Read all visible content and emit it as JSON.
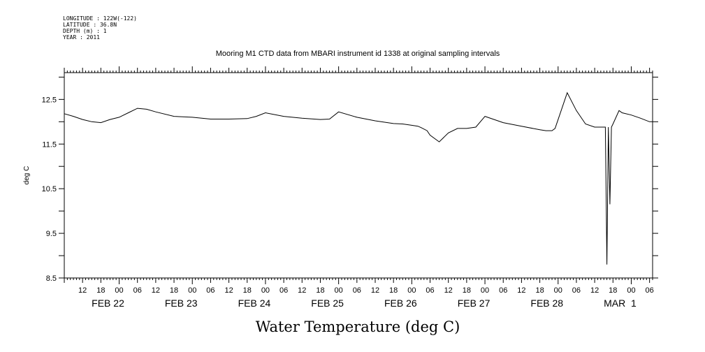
{
  "metadata": {
    "lines": [
      "LONGITUDE : 122W(-122)",
      "LATITUDE : 36.8N",
      "DEPTH (m) : 1",
      "YEAR : 2011"
    ]
  },
  "chart_data": {
    "type": "line",
    "title": "Mooring M1 CTD data from MBARI instrument id 1338 at original sampling intervals",
    "xlabel": "Water Temperature (deg C)",
    "ylabel": "deg C",
    "xlim": [
      "2011-02-21T06:00",
      "2011-03-01T07:00"
    ],
    "ylim": [
      8.5,
      13.1
    ],
    "y_ticks": [
      "8.5",
      "9.5",
      "10.5",
      "11.5",
      "12.5"
    ],
    "hour_tick_labels": [
      "12",
      "18",
      "00",
      "06",
      "12",
      "18",
      "00",
      "06",
      "12",
      "18",
      "00",
      "06",
      "12",
      "18",
      "00",
      "06",
      "12",
      "18",
      "00",
      "06",
      "12",
      "18",
      "00",
      "06",
      "12",
      "18",
      "00",
      "06",
      "12",
      "18",
      "00",
      "06",
      "12",
      "18",
      "00",
      "06"
    ],
    "date_labels": [
      "FEB 22",
      "FEB 23",
      "FEB 24",
      "FEB 25",
      "FEB 26",
      "FEB 27",
      "FEB 28",
      "MAR  1"
    ],
    "grid": false,
    "series": [
      {
        "color": "#000000",
        "x": [
          "2011-02-21T06:00",
          "2011-02-21T09:00",
          "2011-02-21T12:00",
          "2011-02-21T15:00",
          "2011-02-21T18:00",
          "2011-02-21T21:00",
          "2011-02-22T00:00",
          "2011-02-22T03:00",
          "2011-02-22T06:00",
          "2011-02-22T09:00",
          "2011-02-22T12:00",
          "2011-02-22T18:00",
          "2011-02-23T00:00",
          "2011-02-23T06:00",
          "2011-02-23T12:00",
          "2011-02-23T18:00",
          "2011-02-23T21:00",
          "2011-02-24T00:00",
          "2011-02-24T06:00",
          "2011-02-24T12:00",
          "2011-02-24T18:00",
          "2011-02-24T21:00",
          "2011-02-25T00:00",
          "2011-02-25T06:00",
          "2011-02-25T12:00",
          "2011-02-25T18:00",
          "2011-02-25T21:00",
          "2011-02-26T00:00",
          "2011-02-26T02:00",
          "2011-02-26T03:00",
          "2011-02-26T05:00",
          "2011-02-26T06:00",
          "2011-02-26T09:00",
          "2011-02-26T12:00",
          "2011-02-26T15:00",
          "2011-02-26T18:00",
          "2011-02-26T21:00",
          "2011-02-27T00:00",
          "2011-02-27T06:00",
          "2011-02-27T12:00",
          "2011-02-27T18:00",
          "2011-02-27T20:00",
          "2011-02-27T22:00",
          "2011-02-27T23:00",
          "2011-02-28T00:00",
          "2011-02-28T03:00",
          "2011-02-28T06:00",
          "2011-02-28T09:00",
          "2011-02-28T12:00",
          "2011-02-28T14:00",
          "2011-02-28T15:00",
          "2011-02-28T15:30",
          "2011-02-28T16:00",
          "2011-02-28T16:30",
          "2011-02-28T17:00",
          "2011-02-28T17:30",
          "2011-02-28T18:00",
          "2011-02-28T20:00",
          "2011-02-28T21:00",
          "2011-03-01T00:00",
          "2011-03-01T03:00",
          "2011-03-01T06:00",
          "2011-03-01T07:00"
        ],
        "y": [
          12.18,
          12.12,
          12.05,
          12.0,
          11.98,
          12.05,
          12.1,
          12.2,
          12.3,
          12.28,
          12.22,
          12.12,
          12.1,
          12.06,
          12.06,
          12.07,
          12.12,
          12.2,
          12.12,
          12.08,
          12.05,
          12.06,
          12.22,
          12.1,
          12.02,
          11.96,
          11.95,
          11.92,
          11.9,
          11.87,
          11.8,
          11.7,
          11.55,
          11.75,
          11.85,
          11.85,
          11.88,
          12.12,
          11.98,
          11.9,
          11.82,
          11.8,
          11.8,
          11.85,
          12.05,
          12.65,
          12.25,
          11.95,
          11.88,
          11.88,
          11.88,
          11.88,
          8.8,
          11.88,
          10.15,
          11.88,
          11.95,
          12.25,
          12.2,
          12.15,
          12.08,
          12.0,
          12.0
        ]
      }
    ]
  }
}
